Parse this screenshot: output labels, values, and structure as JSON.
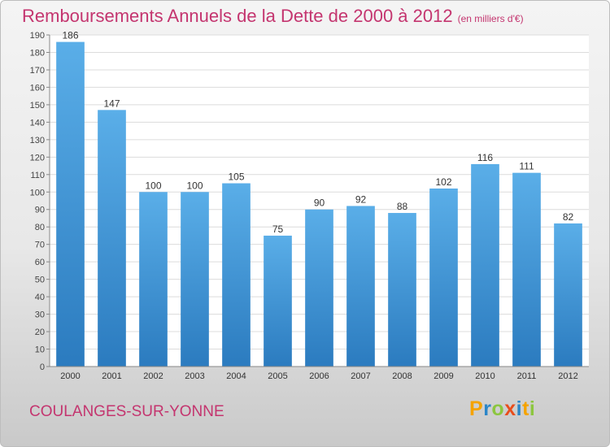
{
  "title": "Remboursements Annuels de la Dette de 2000 à 2012",
  "unit_note": "(en milliers d'€)",
  "commune": "COULANGES-SUR-YONNE",
  "brand": {
    "letters": [
      "P",
      "r",
      "o",
      "x",
      "i",
      "t",
      "i"
    ],
    "colors": [
      "#f5a300",
      "#2b86c8",
      "#8cc63f",
      "#e84e1c",
      "#2b86c8",
      "#f5a300",
      "#8cc63f"
    ]
  },
  "colors": {
    "title": "#c4356f",
    "bar_top": "#5aaee8",
    "bar_bottom": "#2b7bbf"
  },
  "chart_data": {
    "type": "bar",
    "title": "Remboursements Annuels de la Dette de 2000 à 2012",
    "categories": [
      "2000",
      "2001",
      "2002",
      "2003",
      "2004",
      "2005",
      "2006",
      "2007",
      "2008",
      "2009",
      "2010",
      "2011",
      "2012"
    ],
    "values": [
      186,
      147,
      100,
      100,
      105,
      75,
      90,
      92,
      88,
      102,
      116,
      111,
      82
    ],
    "ylim": [
      0,
      190
    ],
    "yticks": [
      0,
      10,
      20,
      30,
      40,
      50,
      60,
      70,
      80,
      90,
      100,
      110,
      120,
      130,
      140,
      150,
      160,
      170,
      180,
      190
    ],
    "grid": true,
    "xlabel": "",
    "ylabel": ""
  }
}
